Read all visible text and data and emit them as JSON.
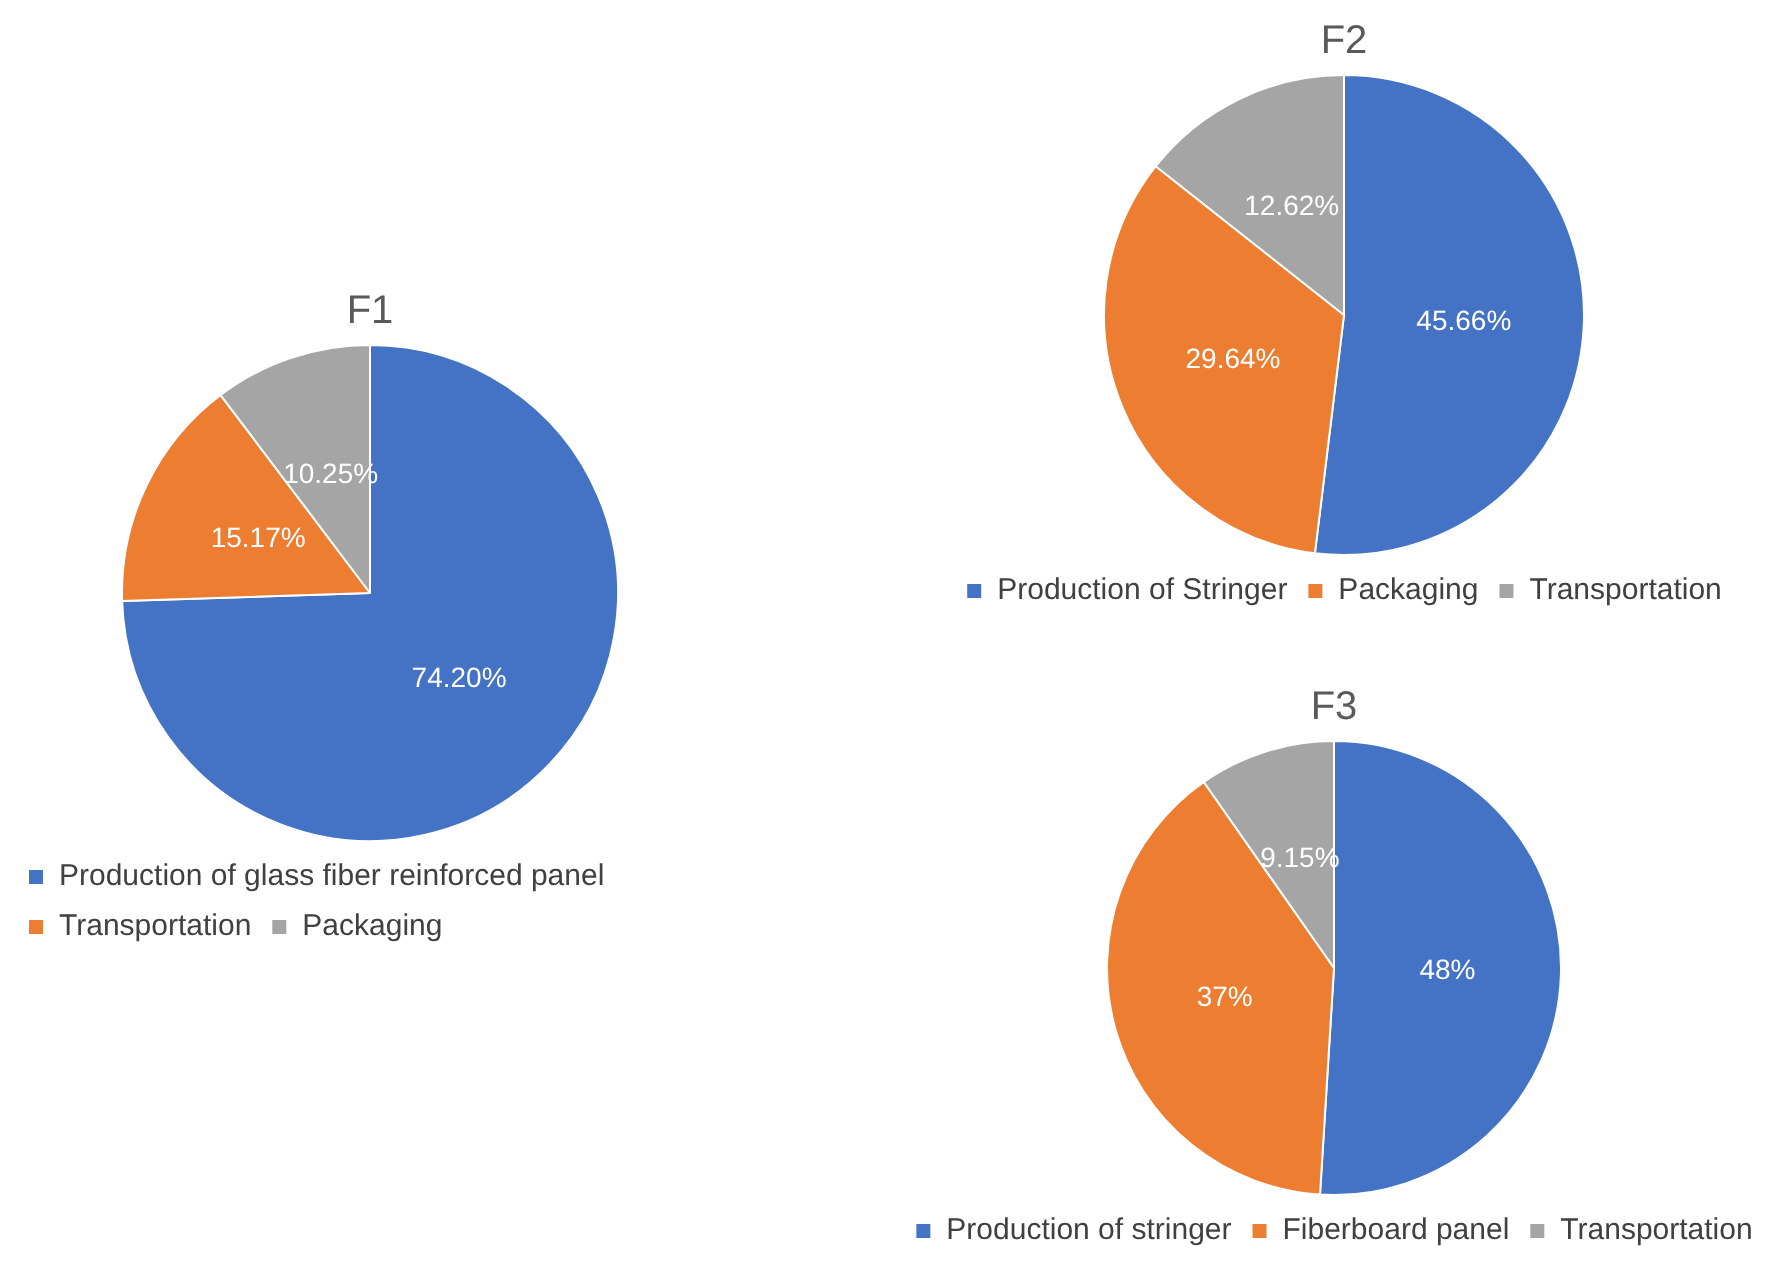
{
  "chart_data": [
    {
      "type": "pie",
      "title": "F1",
      "categories": [
        "Production of glass fiber reinforced panel",
        "Transportation",
        "Packaging"
      ],
      "values": [
        74.2,
        15.17,
        10.25
      ],
      "value_labels": [
        "74.20%",
        "15.17%",
        "10.25%"
      ],
      "colors": [
        "#4472c4",
        "#ed7d31",
        "#a5a5a5"
      ],
      "legend": "bottom"
    },
    {
      "type": "pie",
      "title": "F2",
      "categories": [
        "Production of Stringer",
        "Packaging",
        "Transportation"
      ],
      "values": [
        45.66,
        29.64,
        12.62
      ],
      "value_labels": [
        "45.66%",
        "29.64%",
        "12.62%"
      ],
      "colors": [
        "#4472c4",
        "#ed7d31",
        "#a5a5a5"
      ],
      "legend": "bottom"
    },
    {
      "type": "pie",
      "title": "F3",
      "categories": [
        "Production of stringer",
        "Fiberboard panel",
        "Transportation"
      ],
      "values": [
        48,
        37,
        9.15
      ],
      "value_labels": [
        "48%",
        "37%",
        "9.15%"
      ],
      "colors": [
        "#4472c4",
        "#ed7d31",
        "#a5a5a5"
      ],
      "legend": "bottom"
    }
  ]
}
